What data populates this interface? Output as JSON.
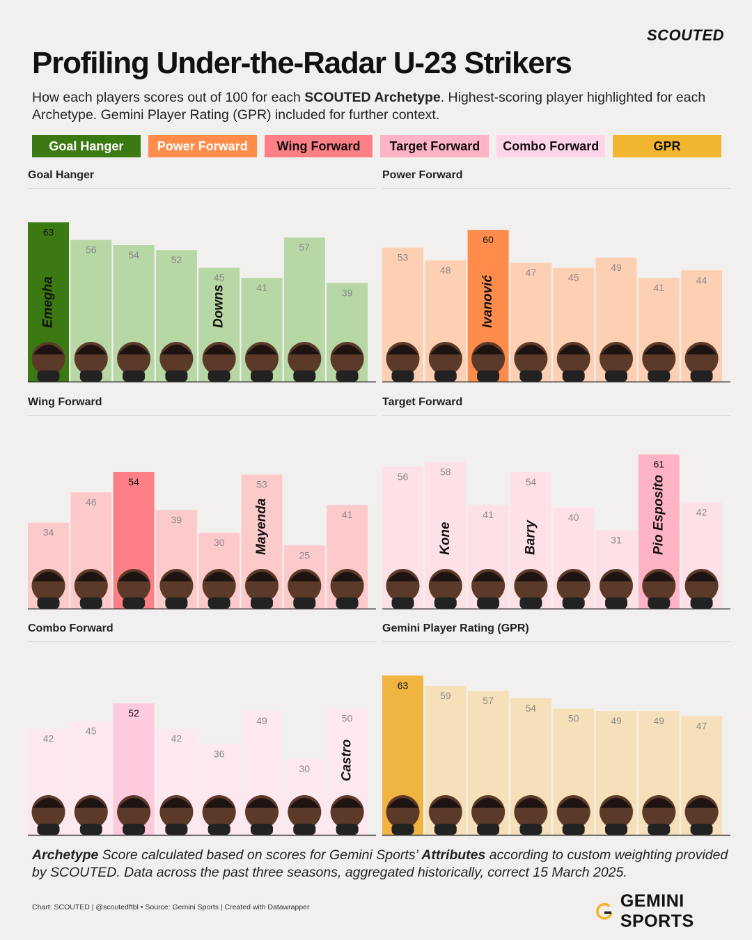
{
  "brand": "SCOUTED",
  "title": "Profiling Under-the-Radar U-23 Strikers",
  "subtitle": {
    "part1": "How each players scores out of 100 for each ",
    "bold": "SCOUTED Archetype",
    "part2": ". Highest-scoring player highlighted for each Archetype. Gemini Player Rating (GPR) included for further context."
  },
  "legend": [
    {
      "label": "Goal Hanger",
      "bg": "#3b7a12",
      "fg": "#ffffff"
    },
    {
      "label": "Power Forward",
      "bg": "#ff8c4a",
      "fg": "#ffffff"
    },
    {
      "label": "Wing Forward",
      "bg": "#ff7f86",
      "fg": "#111111"
    },
    {
      "label": "Target Forward",
      "bg": "#ffb3c4",
      "fg": "#111111"
    },
    {
      "label": "Combo Forward",
      "bg": "#ffd3e8",
      "fg": "#111111"
    },
    {
      "label": "GPR",
      "bg": "#f2b530",
      "fg": "#111111"
    }
  ],
  "chart_data": [
    {
      "type": "bar",
      "title": "Goal Hanger",
      "values": [
        63,
        56,
        54,
        52,
        45,
        41,
        57,
        39
      ],
      "ylim": [
        0,
        100
      ],
      "highlight": [
        0
      ],
      "highlight_color": "#3b7a12",
      "base_color": "#b7d7a4",
      "names": [
        {
          "index": 0,
          "name": "Emegha"
        },
        {
          "index": 4,
          "name": "Downs"
        }
      ]
    },
    {
      "type": "bar",
      "title": "Power Forward",
      "values": [
        53,
        48,
        60,
        47,
        45,
        49,
        41,
        44
      ],
      "ylim": [
        0,
        100
      ],
      "highlight": [
        2
      ],
      "highlight_color": "#ff8c4a",
      "base_color": "#fdd0b3",
      "names": [
        {
          "index": 2,
          "name": "Ivanović"
        }
      ]
    },
    {
      "type": "bar",
      "title": "Wing Forward",
      "values": [
        34,
        46,
        54,
        39,
        30,
        53,
        25,
        41
      ],
      "ylim": [
        0,
        100
      ],
      "highlight": [
        2
      ],
      "highlight_color": "#ff7f86",
      "base_color": "#fdcacb",
      "names": [
        {
          "index": 5,
          "name": "Mayenda"
        }
      ]
    },
    {
      "type": "bar",
      "title": "Target Forward",
      "values": [
        56,
        58,
        41,
        54,
        40,
        31,
        61,
        42
      ],
      "ylim": [
        0,
        100
      ],
      "highlight": [
        6
      ],
      "highlight_color": "#ffb3c4",
      "base_color": "#fde1e6",
      "names": [
        {
          "index": 1,
          "name": "Kone"
        },
        {
          "index": 3,
          "name": "Barry"
        },
        {
          "index": 6,
          "name": "Pio Esposito"
        }
      ]
    },
    {
      "type": "bar",
      "title": "Combo Forward",
      "values": [
        42,
        45,
        52,
        42,
        36,
        49,
        30,
        50
      ],
      "ylim": [
        0,
        100
      ],
      "highlight": [
        2
      ],
      "highlight_color": "#ffc9de",
      "base_color": "#fde8ef",
      "names": [
        {
          "index": 7,
          "name": "Castro"
        }
      ]
    },
    {
      "type": "bar",
      "title": "Gemini Player Rating (GPR)",
      "values": [
        63,
        59,
        57,
        54,
        50,
        49,
        49,
        47
      ],
      "ylim": [
        0,
        100
      ],
      "highlight": [
        0
      ],
      "highlight_color": "#f0b440",
      "base_color": "#f6e0b9",
      "names": []
    }
  ],
  "footnote": {
    "b1": "Archetype",
    "t1": " Score calculated based on scores for Gemini Sports’ ",
    "b2": "Attributes",
    "t2": " according to custom weighting provided by SCOUTED. Data across the past three seasons, aggregated historically, correct 15 March 2025."
  },
  "credit": "Chart: SCOUTED | @scoutedftbl • Source: Gemini Sports | Created with Datawrapper",
  "logo": "GEMINI SPORTS"
}
